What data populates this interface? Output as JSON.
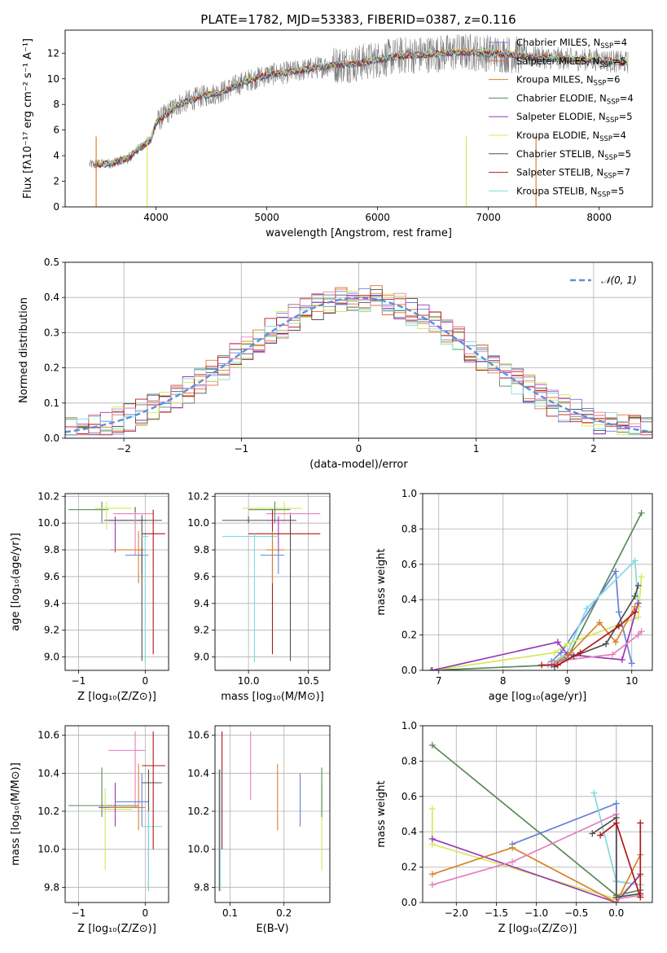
{
  "figure_title": "PLATE=1782, MJD=53383, FIBERID=0387, z=0.116",
  "colors": {
    "chabrier_miles": "#6a7fd6",
    "salpeter_miles": "#e46a3c",
    "kroupa_miles": "#d9822b",
    "chabrier_elodie": "#5a8a5a",
    "salpeter_elodie": "#9b38b8",
    "kroupa_elodie": "#d4e85a",
    "chabrier_stelib": "#505050",
    "salpeter_stelib": "#b01818",
    "kroupa_stelib": "#80dbe0",
    "salpeter_elodie_alt": "#e57fbf",
    "observed": "#808080",
    "gaussian": "#5b8fd9"
  },
  "chart_data": [
    {
      "id": "spectrum",
      "type": "line",
      "title": "PLATE=1782, MJD=53383, FIBERID=0387, z=0.116",
      "xlabel": "wavelength [Angstrom, rest frame]",
      "ylabel": "Flux [fλ10⁻¹⁷ erg cm⁻² s⁻¹ A⁻¹]",
      "xlim": [
        3180,
        8480
      ],
      "ylim": [
        0,
        13.8
      ],
      "xticks": [
        4000,
        5000,
        6000,
        7000,
        8000
      ],
      "yticks": [
        0,
        2,
        4,
        6,
        8,
        10,
        12
      ],
      "legend_position": "right",
      "series": [
        {
          "name": "Chabrier MILES, N_SSP=4",
          "label_main": "Chabrier MILES, N",
          "label_sub": "SSP",
          "label_tail": "=4",
          "color": "#6a7fd6"
        },
        {
          "name": "Salpeter MILES, N_SSP=5",
          "label_main": "Salpeter MILES, N",
          "label_sub": "SSP",
          "label_tail": "=5",
          "color": "#e46a3c"
        },
        {
          "name": "Kroupa MILES, N_SSP=6",
          "label_main": "Kroupa MILES, N",
          "label_sub": "SSP",
          "label_tail": "=6",
          "color": "#d9822b"
        },
        {
          "name": "Chabrier ELODIE, N_SSP=4",
          "label_main": "Chabrier ELODIE, N",
          "label_sub": "SSP",
          "label_tail": "=4",
          "color": "#5a8a5a"
        },
        {
          "name": "Salpeter ELODIE, N_SSP=5",
          "label_main": "Salpeter ELODIE, N",
          "label_sub": "SSP",
          "label_tail": "=5",
          "color": "#9b38b8"
        },
        {
          "name": "Kroupa ELODIE, N_SSP=4",
          "label_main": "Kroupa ELODIE, N",
          "label_sub": "SSP",
          "label_tail": "=4",
          "color": "#d4e85a"
        },
        {
          "name": "Chabrier STELIB, N_SSP=5",
          "label_main": "Chabrier STELIB, N",
          "label_sub": "SSP",
          "label_tail": "=5",
          "color": "#505050"
        },
        {
          "name": "Salpeter STELIB, N_SSP=7",
          "label_main": "Salpeter STELIB, N",
          "label_sub": "SSP",
          "label_tail": "=7",
          "color": "#b01818"
        },
        {
          "name": "Kroupa STELIB, N_SSP=5",
          "label_main": "Kroupa STELIB, N",
          "label_sub": "SSP",
          "label_tail": "=5",
          "color": "#80dbe0"
        }
      ],
      "observed_anchor_points": [
        [
          3400,
          3.3
        ],
        [
          3600,
          3.4
        ],
        [
          3750,
          3.8
        ],
        [
          3850,
          4.6
        ],
        [
          3950,
          5.2
        ],
        [
          4000,
          6.6
        ],
        [
          4100,
          7.3
        ],
        [
          4200,
          8.0
        ],
        [
          4400,
          8.6
        ],
        [
          4600,
          9.0
        ],
        [
          4800,
          9.8
        ],
        [
          5000,
          10.3
        ],
        [
          5200,
          10.5
        ],
        [
          5400,
          10.8
        ],
        [
          5600,
          11.1
        ],
        [
          5800,
          11.2
        ],
        [
          6000,
          11.5
        ],
        [
          6200,
          11.8
        ],
        [
          6400,
          11.9
        ],
        [
          6600,
          12.0
        ],
        [
          6800,
          12.1
        ],
        [
          7000,
          12.0
        ],
        [
          7200,
          11.9
        ],
        [
          7400,
          11.7
        ],
        [
          7600,
          11.6
        ],
        [
          7800,
          11.5
        ],
        [
          8000,
          11.5
        ],
        [
          8200,
          11.3
        ]
      ],
      "model_range": [
        3450,
        8250
      ]
    },
    {
      "id": "residuals",
      "type": "histogram",
      "xlabel": "(data-model)/error",
      "ylabel": "Normed distribution",
      "xlim": [
        -2.5,
        2.5
      ],
      "ylim": [
        0,
        0.5
      ],
      "xticks": [
        -2,
        -1,
        0,
        1,
        2
      ],
      "yticks": [
        0.0,
        0.1,
        0.2,
        0.3,
        0.4,
        0.5
      ],
      "legend": "𝒩(0, 1)",
      "legend_position": "top-right",
      "bin_width": 0.1,
      "grid": true
    },
    {
      "id": "age_vs_Z",
      "type": "errorbar",
      "xlabel": "Z [log₁₀(Z/Z⊙)]",
      "ylabel": "age  [log₁₀(age/yr)]",
      "xlim": [
        -1.2,
        0.35
      ],
      "ylim": [
        8.9,
        10.22
      ],
      "xticks": [
        -1,
        0
      ],
      "yticks": [
        9.0,
        9.2,
        9.4,
        9.6,
        9.8,
        10.0,
        10.2
      ],
      "points": [
        {
          "x": -0.65,
          "xlo": -1.15,
          "xhi": -0.55,
          "y": 10.1,
          "ylo": 10.0,
          "yhi": 10.16,
          "color": "#5a8a5a"
        },
        {
          "x": -0.58,
          "xlo": -0.75,
          "xhi": -0.2,
          "y": 10.11,
          "ylo": 9.95,
          "yhi": 10.16,
          "color": "#d4e85a"
        },
        {
          "x": -0.45,
          "xlo": -0.62,
          "xhi": -0.05,
          "y": 10.02,
          "ylo": 9.78,
          "yhi": 10.05,
          "color": "#9b38b8"
        },
        {
          "x": -0.15,
          "xlo": -0.55,
          "xhi": 0.0,
          "y": 10.02,
          "ylo": 10.0,
          "yhi": 10.12,
          "color": "#505050"
        },
        {
          "x": -0.15,
          "xlo": -0.48,
          "xhi": 0.12,
          "y": 10.07,
          "ylo": 9.76,
          "yhi": 10.08,
          "color": "#e57fbf"
        },
        {
          "x": -0.1,
          "xlo": -0.52,
          "xhi": 0.0,
          "y": 9.8,
          "ylo": 9.55,
          "yhi": 9.94,
          "color": "#d9822b"
        },
        {
          "x": -0.05,
          "xlo": -0.3,
          "xhi": 0.05,
          "y": 9.76,
          "ylo": 9.62,
          "yhi": 9.82,
          "color": "#6a7fd6"
        },
        {
          "x": -0.05,
          "xlo": -0.1,
          "xhi": 0.25,
          "y": 10.02,
          "ylo": 8.97,
          "yhi": 10.06,
          "color": "#505050"
        },
        {
          "x": 0.0,
          "xlo": -0.05,
          "xhi": 0.05,
          "y": 9.9,
          "ylo": 8.96,
          "yhi": 9.92,
          "color": "#80dbe0"
        },
        {
          "x": 0.12,
          "xlo": -0.05,
          "xhi": 0.3,
          "y": 9.92,
          "ylo": 9.02,
          "yhi": 10.1,
          "color": "#b01818"
        }
      ]
    },
    {
      "id": "age_vs_mass",
      "type": "errorbar",
      "xlabel": "mass [log₁₀(M/M⊙)]",
      "ylabel": "",
      "xlim": [
        9.72,
        10.68
      ],
      "ylim": [
        8.9,
        10.22
      ],
      "xticks": [
        10.0,
        10.5
      ],
      "yticks": [
        9.0,
        9.2,
        9.4,
        9.6,
        9.8,
        10.0,
        10.2
      ],
      "points": [
        {
          "x": 10.3,
          "xlo": 9.95,
          "xhi": 10.45,
          "y": 10.11,
          "ylo": 10.0,
          "yhi": 10.16,
          "color": "#d4e85a"
        },
        {
          "x": 10.22,
          "xlo": 10.0,
          "xhi": 10.35,
          "y": 10.1,
          "ylo": 10.0,
          "yhi": 10.16,
          "color": "#5a8a5a"
        },
        {
          "x": 10.35,
          "xlo": 10.15,
          "xhi": 10.6,
          "y": 10.07,
          "ylo": 9.76,
          "yhi": 10.08,
          "color": "#e57fbf"
        },
        {
          "x": 10.0,
          "xlo": 9.78,
          "xhi": 10.4,
          "y": 10.02,
          "ylo": 10.0,
          "yhi": 10.05,
          "color": "#505050"
        },
        {
          "x": 10.25,
          "xlo": 10.15,
          "xhi": 10.35,
          "y": 10.02,
          "ylo": 9.78,
          "yhi": 10.05,
          "color": "#9b38b8"
        },
        {
          "x": 10.2,
          "xlo": 10.0,
          "xhi": 10.6,
          "y": 9.92,
          "ylo": 9.02,
          "yhi": 10.1,
          "color": "#b01818"
        },
        {
          "x": 10.05,
          "xlo": 9.78,
          "xhi": 10.25,
          "y": 9.9,
          "ylo": 8.96,
          "yhi": 9.92,
          "color": "#80dbe0"
        },
        {
          "x": 10.25,
          "xlo": 10.1,
          "xhi": 10.3,
          "y": 9.76,
          "ylo": 9.62,
          "yhi": 9.82,
          "color": "#6a7fd6"
        },
        {
          "x": 10.2,
          "xlo": 10.15,
          "xhi": 10.3,
          "y": 9.8,
          "ylo": 9.55,
          "yhi": 9.94,
          "color": "#d9822b"
        },
        {
          "x": 10.35,
          "xlo": 10.35,
          "xhi": 10.35,
          "y": 10.02,
          "ylo": 8.97,
          "yhi": 10.06,
          "color": "#505050"
        }
      ]
    },
    {
      "id": "weight_vs_age",
      "type": "line",
      "xlabel": "age  [log₁₀(age/yr)]",
      "ylabel": "mass weight",
      "xlim": [
        6.75,
        10.32
      ],
      "ylim": [
        0,
        1.0
      ],
      "xticks": [
        7,
        8,
        9,
        10
      ],
      "yticks": [
        0.0,
        0.2,
        0.4,
        0.6,
        0.8,
        1.0
      ],
      "series": [
        {
          "color": "#5a8a5a",
          "x": [
            6.88,
            8.75,
            9.0,
            10.15
          ],
          "y": [
            0.0,
            0.03,
            0.07,
            0.89
          ]
        },
        {
          "color": "#6a7fd6",
          "x": [
            8.75,
            8.9,
            9.75,
            9.8,
            10.0
          ],
          "y": [
            0.05,
            0.1,
            0.56,
            0.33,
            0.04
          ]
        },
        {
          "color": "#80dbe0",
          "x": [
            8.8,
            9.0,
            9.3,
            10.05,
            10.1
          ],
          "y": [
            0.05,
            0.1,
            0.35,
            0.62,
            0.36
          ]
        },
        {
          "color": "#d4e85a",
          "x": [
            6.9,
            8.8,
            9.0,
            10.1,
            10.15
          ],
          "y": [
            0.0,
            0.1,
            0.15,
            0.3,
            0.53
          ]
        },
        {
          "color": "#9b38b8",
          "x": [
            6.9,
            8.85,
            9.0,
            9.85,
            10.1
          ],
          "y": [
            0.0,
            0.16,
            0.09,
            0.06,
            0.38
          ]
        },
        {
          "color": "#d9822b",
          "x": [
            8.8,
            9.05,
            9.5,
            9.75,
            10.05
          ],
          "y": [
            0.04,
            0.1,
            0.27,
            0.16,
            0.36
          ]
        },
        {
          "color": "#e57fbf",
          "x": [
            8.7,
            9.0,
            9.7,
            10.1,
            10.15
          ],
          "y": [
            0.03,
            0.06,
            0.09,
            0.2,
            0.22
          ]
        },
        {
          "color": "#505050",
          "x": [
            8.8,
            9.1,
            9.6,
            10.05,
            10.1
          ],
          "y": [
            0.02,
            0.08,
            0.15,
            0.42,
            0.48
          ]
        },
        {
          "color": "#b01818",
          "x": [
            8.6,
            8.85,
            9.2,
            9.8,
            10.05
          ],
          "y": [
            0.03,
            0.03,
            0.1,
            0.25,
            0.33
          ]
        }
      ]
    },
    {
      "id": "mass_vs_Z",
      "type": "errorbar",
      "xlabel": "Z [log₁₀(Z/Z⊙)]",
      "ylabel": "mass [log₁₀(M/M⊙)]",
      "xlim": [
        -1.2,
        0.35
      ],
      "ylim": [
        9.72,
        10.65
      ],
      "xticks": [
        -1,
        0
      ],
      "yticks": [
        9.8,
        10.0,
        10.2,
        10.4,
        10.6
      ],
      "points": [
        {
          "x": -0.65,
          "xlo": -1.15,
          "xhi": -0.1,
          "y": 10.23,
          "ylo": 10.17,
          "yhi": 10.43,
          "color": "#5a8a5a"
        },
        {
          "x": -0.6,
          "xlo": -0.65,
          "xhi": -0.2,
          "y": 10.21,
          "ylo": 9.89,
          "yhi": 10.32,
          "color": "#d4e85a"
        },
        {
          "x": -0.45,
          "xlo": -0.7,
          "xhi": -0.1,
          "y": 10.22,
          "ylo": 10.12,
          "yhi": 10.35,
          "color": "#9b38b8"
        },
        {
          "x": -0.15,
          "xlo": -0.55,
          "xhi": 0.0,
          "y": 10.52,
          "ylo": 10.22,
          "yhi": 10.62,
          "color": "#e57fbf"
        },
        {
          "x": -0.1,
          "xlo": -0.55,
          "xhi": 0.0,
          "y": 10.22,
          "ylo": 10.1,
          "yhi": 10.45,
          "color": "#d9822b"
        },
        {
          "x": -0.05,
          "xlo": -0.45,
          "xhi": 0.05,
          "y": 10.25,
          "ylo": 10.12,
          "yhi": 10.4,
          "color": "#6a7fd6"
        },
        {
          "x": 0.05,
          "xlo": -0.05,
          "xhi": 0.25,
          "y": 10.35,
          "ylo": 9.78,
          "yhi": 10.42,
          "color": "#505050"
        },
        {
          "x": 0.05,
          "xlo": -0.05,
          "xhi": 0.25,
          "y": 10.12,
          "ylo": 9.78,
          "yhi": 10.2,
          "color": "#80dbe0"
        },
        {
          "x": 0.12,
          "xlo": -0.05,
          "xhi": 0.3,
          "y": 10.44,
          "ylo": 10.0,
          "yhi": 10.62,
          "color": "#b01818"
        }
      ]
    },
    {
      "id": "mass_vs_ebv",
      "type": "errorbar",
      "xlabel": "E(B-V)",
      "ylabel": "",
      "xlim": [
        0.072,
        0.285
      ],
      "ylim": [
        9.72,
        10.65
      ],
      "xticks": [
        0.1,
        0.2
      ],
      "yticks": [
        9.8,
        10.0,
        10.2,
        10.4,
        10.6
      ],
      "points": [
        {
          "x": 0.08,
          "y": 10.35,
          "ylo": 9.78,
          "yhi": 10.42,
          "color": "#505050"
        },
        {
          "x": 0.082,
          "y": 10.0,
          "ylo": 9.78,
          "yhi": 10.42,
          "color": "#80dbe0"
        },
        {
          "x": 0.085,
          "y": 10.4,
          "ylo": 10.0,
          "yhi": 10.62,
          "color": "#b01818"
        },
        {
          "x": 0.138,
          "y": 10.5,
          "ylo": 10.26,
          "yhi": 10.62,
          "color": "#e57fbf"
        },
        {
          "x": 0.188,
          "y": 10.3,
          "ylo": 10.1,
          "yhi": 10.45,
          "color": "#d9822b"
        },
        {
          "x": 0.23,
          "y": 10.25,
          "ylo": 10.12,
          "yhi": 10.4,
          "color": "#6a7fd6"
        },
        {
          "x": 0.27,
          "y": 10.2,
          "ylo": 9.89,
          "yhi": 10.36,
          "color": "#d4e85a"
        },
        {
          "x": 0.27,
          "y": 10.3,
          "ylo": 10.17,
          "yhi": 10.43,
          "color": "#5a8a5a"
        }
      ]
    },
    {
      "id": "weight_vs_Z",
      "type": "line",
      "xlabel": "Z [log₁₀(Z/Z⊙)]",
      "ylabel": "mass weight",
      "xlim": [
        -2.42,
        0.45
      ],
      "ylim": [
        0,
        1.0
      ],
      "xticks": [
        -2.0,
        -1.5,
        -1.0,
        -0.5,
        0.0
      ],
      "yticks": [
        0.0,
        0.2,
        0.4,
        0.6,
        0.8,
        1.0
      ],
      "series": [
        {
          "color": "#5a8a5a",
          "x": [
            -2.3,
            0.0,
            0.3
          ],
          "y": [
            0.89,
            0.04,
            0.07
          ]
        },
        {
          "color": "#6a7fd6",
          "x": [
            -1.3,
            0.0,
            0.0,
            0.3
          ],
          "y": [
            0.33,
            0.56,
            0.12,
            0.1
          ]
        },
        {
          "color": "#80dbe0",
          "x": [
            -0.28,
            0.0,
            0.3
          ],
          "y": [
            0.62,
            0.12,
            0.1
          ]
        },
        {
          "color": "#d4e85a",
          "x": [
            -2.3,
            -2.3,
            0.0,
            0.3
          ],
          "y": [
            0.53,
            0.33,
            0.02,
            0.15
          ]
        },
        {
          "color": "#9b38b8",
          "x": [
            -2.3,
            0.0,
            0.3
          ],
          "y": [
            0.36,
            0.0,
            0.16
          ]
        },
        {
          "color": "#d9822b",
          "x": [
            -2.3,
            -1.3,
            0.0,
            0.3
          ],
          "y": [
            0.16,
            0.31,
            0.0,
            0.27
          ]
        },
        {
          "color": "#e57fbf",
          "x": [
            -2.3,
            -1.3,
            0.0,
            0.0,
            0.3
          ],
          "y": [
            0.1,
            0.23,
            0.5,
            0.02,
            0.04
          ]
        },
        {
          "color": "#505050",
          "x": [
            -0.3,
            0.0,
            0.0,
            0.3
          ],
          "y": [
            0.39,
            0.48,
            0.03,
            0.05
          ]
        },
        {
          "color": "#b01818",
          "x": [
            -0.2,
            0.0,
            0.3,
            0.3
          ],
          "y": [
            0.38,
            0.45,
            0.03,
            0.45
          ]
        }
      ]
    }
  ]
}
